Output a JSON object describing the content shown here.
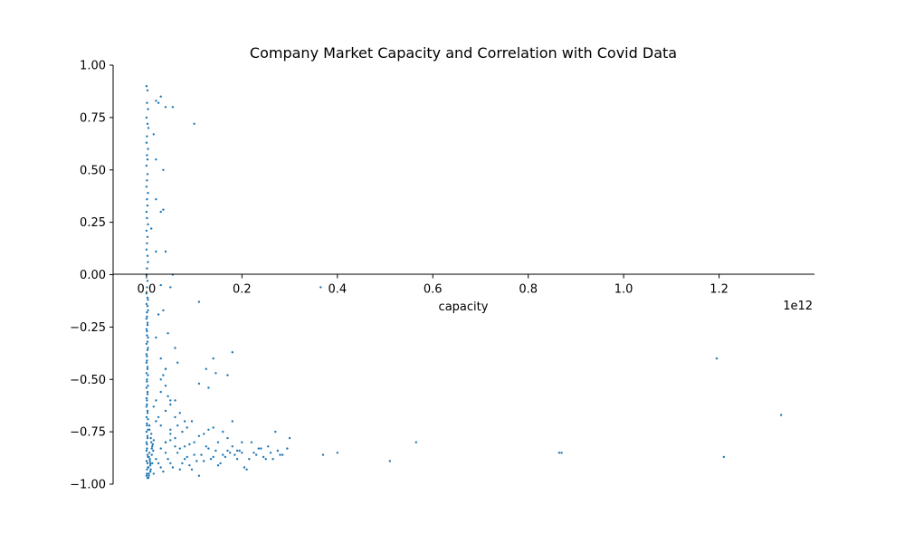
{
  "chart_data": {
    "type": "scatter",
    "title": "Company Market Capacity and Correlation with Covid Data",
    "xlabel": "capacity",
    "ylabel": "",
    "x_offset_label": "1e12",
    "x_scale": 1000000000000.0,
    "xlim": [
      -0.07,
      1.4
    ],
    "ylim": [
      -1.0,
      1.0
    ],
    "xticks": [
      0.0,
      0.2,
      0.4,
      0.6,
      0.8,
      1.0,
      1.2
    ],
    "xtick_labels": [
      "0.0",
      "0.2",
      "0.4",
      "0.6",
      "0.8",
      "1.0",
      "1.2"
    ],
    "yticks": [
      -1.0,
      -0.75,
      -0.5,
      -0.25,
      0.0,
      0.25,
      0.5,
      0.75,
      1.0
    ],
    "ytick_labels": [
      "−1.00",
      "−0.75",
      "−0.50",
      "−0.25",
      "0.00",
      "0.25",
      "0.50",
      "0.75",
      "1.00"
    ],
    "grid": false,
    "color": "#1f77b4",
    "series": [
      {
        "x": [
          0.0,
          0.002,
          0.001,
          0.003,
          0.0,
          0.002,
          0.004,
          0.001,
          0.0,
          0.003,
          0.001,
          0.002,
          0.0,
          0.002,
          0.001,
          0.0,
          0.003,
          0.001,
          0.002,
          0.0,
          0.001,
          0.003,
          0.0,
          0.002,
          0.001,
          0.0,
          0.002,
          0.003,
          0.001,
          0.0,
          0.002,
          0.001,
          0.0,
          0.003,
          0.002,
          0.001,
          0.0,
          0.002,
          0.001,
          0.003,
          0.0,
          0.002,
          0.001,
          0.0,
          0.002,
          0.003,
          0.001,
          0.0,
          0.002,
          0.001,
          0.0,
          0.002,
          0.003,
          0.001,
          0.0,
          0.002,
          0.001,
          0.0,
          0.003,
          0.002,
          0.001,
          0.0,
          0.002,
          0.001,
          0.003,
          0.0,
          0.002,
          0.001,
          0.0,
          0.002,
          0.003,
          0.001,
          0.0,
          0.002,
          0.001,
          0.0,
          0.002,
          0.003,
          0.001,
          0.0,
          0.002,
          0.001,
          0.0,
          0.003,
          0.002,
          0.001,
          0.0,
          0.002,
          0.001,
          0.003,
          0.0,
          0.002,
          0.005,
          0.008,
          0.006,
          0.01,
          0.004,
          0.007,
          0.012,
          0.009,
          0.005,
          0.011,
          0.006,
          0.008,
          0.014,
          0.004,
          0.01,
          0.007,
          0.013,
          0.009,
          0.005,
          0.015,
          0.008,
          0.011,
          0.006,
          0.012
        ],
        "y": [
          0.9,
          0.88,
          0.82,
          0.79,
          0.75,
          0.72,
          0.7,
          0.66,
          0.63,
          0.6,
          0.57,
          0.55,
          0.52,
          0.48,
          0.45,
          0.42,
          0.39,
          0.36,
          0.33,
          0.3,
          0.27,
          0.24,
          0.21,
          0.18,
          0.15,
          0.12,
          0.09,
          0.06,
          0.03,
          0.0,
          -0.03,
          -0.06,
          -0.09,
          -0.12,
          -0.15,
          -0.18,
          -0.21,
          -0.24,
          -0.27,
          -0.3,
          -0.33,
          -0.36,
          -0.39,
          -0.42,
          -0.45,
          -0.48,
          -0.51,
          -0.54,
          -0.57,
          -0.6,
          -0.63,
          -0.66,
          -0.69,
          -0.72,
          -0.75,
          -0.78,
          -0.81,
          -0.84,
          -0.87,
          -0.9,
          -0.93,
          -0.96,
          -0.97,
          -0.95,
          -0.92,
          -0.89,
          -0.86,
          -0.83,
          -0.8,
          -0.77,
          -0.74,
          -0.71,
          -0.68,
          -0.65,
          -0.62,
          -0.59,
          -0.56,
          -0.53,
          -0.5,
          -0.47,
          -0.44,
          -0.41,
          -0.38,
          -0.35,
          -0.32,
          -0.29,
          -0.26,
          -0.23,
          -0.2,
          -0.17,
          -0.14,
          -0.11,
          -0.95,
          -0.9,
          -0.85,
          -0.8,
          -0.92,
          -0.88,
          -0.82,
          -0.78,
          -0.96,
          -0.86,
          -0.74,
          -0.91,
          -0.84,
          -0.97,
          -0.76,
          -0.89,
          -0.81,
          -0.93,
          -0.87,
          -0.79,
          -0.94,
          -0.83,
          -0.72,
          -0.9
        ]
      },
      {
        "x": [
          0.02,
          0.025,
          0.03,
          0.04,
          0.055,
          0.1,
          0.015,
          0.02,
          0.035,
          0.035,
          0.02,
          0.03,
          0.055,
          0.01,
          0.02,
          0.04,
          0.03,
          0.05,
          0.035,
          0.025,
          0.02,
          0.06,
          0.045,
          0.03,
          0.04,
          0.065,
          0.04,
          0.03,
          0.05,
          0.02,
          0.015,
          0.04,
          0.06,
          0.025,
          0.03,
          0.05,
          0.07,
          0.045,
          0.03,
          0.035,
          0.04,
          0.06,
          0.02,
          0.05,
          0.08,
          0.11,
          0.13,
          0.145,
          0.17,
          0.18,
          0.14,
          0.125,
          0.11,
          0.095,
          0.085,
          0.075,
          0.065,
          0.05,
          0.04
        ],
        "y": [
          0.83,
          0.82,
          0.85,
          0.8,
          0.8,
          0.72,
          0.67,
          0.55,
          0.5,
          0.31,
          0.36,
          0.3,
          0.0,
          0.22,
          0.11,
          0.11,
          -0.05,
          -0.06,
          -0.17,
          -0.19,
          -0.3,
          -0.35,
          -0.28,
          -0.4,
          -0.45,
          -0.42,
          -0.53,
          -0.56,
          -0.6,
          -0.6,
          -0.63,
          -0.65,
          -0.68,
          -0.68,
          -0.72,
          -0.74,
          -0.66,
          -0.58,
          -0.5,
          -0.48,
          -0.45,
          -0.6,
          -0.7,
          -0.62,
          -0.7,
          -0.13,
          -0.54,
          -0.47,
          -0.48,
          -0.37,
          -0.4,
          -0.45,
          -0.52,
          -0.7,
          -0.73,
          -0.75,
          -0.72,
          -0.76,
          -0.8
        ]
      },
      {
        "x": [
          0.02,
          0.03,
          0.04,
          0.05,
          0.06,
          0.07,
          0.08,
          0.09,
          0.1,
          0.11,
          0.12,
          0.13,
          0.14,
          0.15,
          0.16,
          0.17,
          0.18,
          0.19,
          0.2,
          0.21,
          0.22,
          0.23,
          0.24,
          0.25,
          0.26,
          0.27,
          0.28,
          0.3,
          0.015,
          0.025,
          0.035,
          0.045,
          0.055,
          0.065,
          0.075,
          0.085,
          0.095,
          0.105,
          0.115,
          0.125,
          0.135,
          0.145,
          0.155,
          0.165,
          0.175,
          0.185,
          0.195,
          0.205,
          0.215,
          0.225,
          0.235,
          0.245,
          0.255,
          0.265,
          0.275,
          0.285,
          0.295,
          0.04,
          0.06,
          0.08,
          0.1,
          0.12,
          0.14,
          0.16,
          0.18,
          0.2,
          0.03,
          0.05,
          0.07,
          0.09,
          0.11,
          0.13,
          0.15,
          0.17,
          0.19
        ],
        "y": [
          -0.88,
          -0.92,
          -0.85,
          -0.9,
          -0.82,
          -0.93,
          -0.88,
          -0.91,
          -0.86,
          -0.96,
          -0.89,
          -0.83,
          -0.87,
          -0.91,
          -0.86,
          -0.84,
          -0.82,
          -0.88,
          -0.85,
          -0.93,
          -0.8,
          -0.86,
          -0.83,
          -0.88,
          -0.85,
          -0.75,
          -0.86,
          -0.78,
          -0.95,
          -0.9,
          -0.94,
          -0.88,
          -0.92,
          -0.85,
          -0.9,
          -0.87,
          -0.93,
          -0.89,
          -0.86,
          -0.82,
          -0.88,
          -0.84,
          -0.9,
          -0.87,
          -0.85,
          -0.86,
          -0.84,
          -0.92,
          -0.88,
          -0.85,
          -0.83,
          -0.87,
          -0.82,
          -0.88,
          -0.84,
          -0.86,
          -0.83,
          -0.8,
          -0.78,
          -0.82,
          -0.8,
          -0.76,
          -0.73,
          -0.75,
          -0.7,
          -0.8,
          -0.83,
          -0.79,
          -0.83,
          -0.81,
          -0.77,
          -0.74,
          -0.8,
          -0.78,
          -0.84
        ]
      },
      {
        "x": [
          0.37,
          0.4,
          0.51,
          0.565,
          0.865,
          0.87,
          1.195,
          1.21,
          1.33,
          0.365
        ],
        "y": [
          -0.86,
          -0.85,
          -0.89,
          -0.8,
          -0.85,
          -0.85,
          -0.4,
          -0.87,
          -0.67,
          -0.06
        ]
      }
    ]
  }
}
